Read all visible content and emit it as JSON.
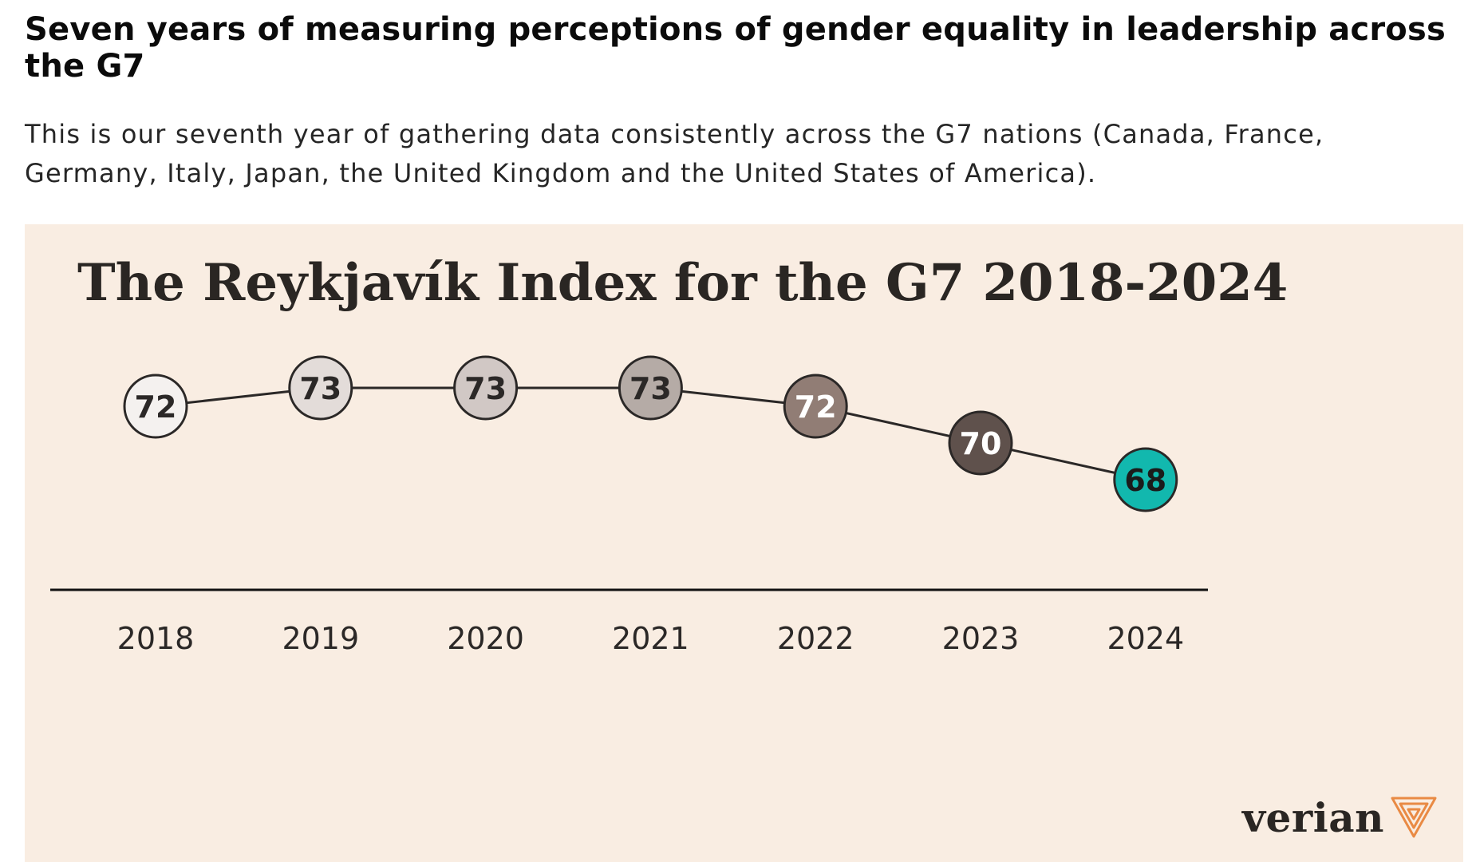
{
  "article": {
    "headline": "Seven years of measuring perceptions of gender equality in leadership across the G7",
    "intro": "This is our seventh year of gathering data consistently across the G7 nations (Canada, France, Germany, Italy, Japan, the United Kingdom and the United States of America)."
  },
  "brand": {
    "name": "verian",
    "logo_icon": "verian-chevron-logo-icon",
    "logo_color": "#e98a44"
  },
  "chart_data": {
    "type": "line",
    "title": "The Reykjavík Index for the G7 2018-2024",
    "xlabel": "",
    "ylabel": "",
    "categories": [
      "2018",
      "2019",
      "2020",
      "2021",
      "2022",
      "2023",
      "2024"
    ],
    "series": [
      {
        "values": [
          72,
          73,
          73,
          73,
          72,
          70,
          68
        ],
        "marker_fills": [
          "#f4f1ef",
          "#e3dcd9",
          "#d1c8c5",
          "#b5aba6",
          "#917d75",
          "#5f514c",
          "#12b8ae"
        ],
        "label_colors": [
          "#2b2827",
          "#2b2827",
          "#2b2827",
          "#2b2827",
          "#ffffff",
          "#ffffff",
          "#1b1b1b"
        ]
      }
    ],
    "grid": false,
    "legend": "none",
    "line_color": "#2b2827",
    "background": "#f9ede2"
  }
}
